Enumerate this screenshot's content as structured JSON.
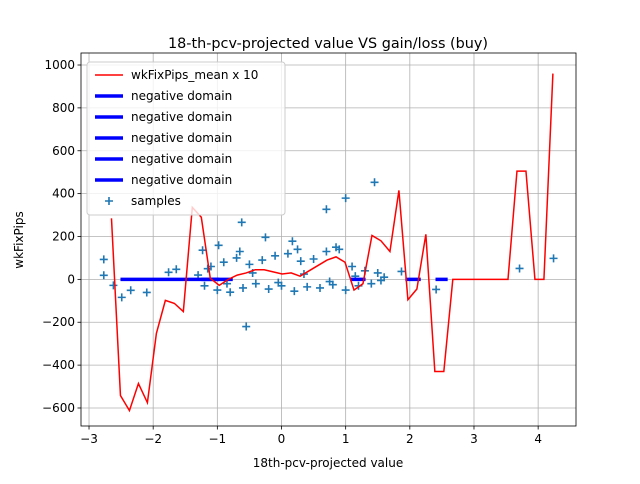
{
  "chart_data": {
    "type": "line_scatter",
    "title": "18-th-pcv-projected value VS gain/loss (buy)",
    "x_label": "18th-pcv-projected value",
    "y_label": "wkFixPips",
    "xlim": [
      -3.125,
      4.59
    ],
    "ylim": [
      -684,
      1056
    ],
    "xticks": [
      {
        "value": -3,
        "label": "−3"
      },
      {
        "value": -2,
        "label": "−2"
      },
      {
        "value": -1,
        "label": "−1"
      },
      0,
      1,
      2,
      3,
      4
    ],
    "yticks": [
      {
        "value": -600,
        "label": "−600"
      },
      {
        "value": -400,
        "label": "−400"
      },
      {
        "value": -200,
        "label": "−200"
      },
      0,
      200,
      400,
      600,
      800,
      1000
    ],
    "grid": true,
    "legend": "upper left",
    "line": {
      "name": "wkFixPips_mean x 10",
      "color": "#ff0000",
      "x": [
        -2.65,
        -2.51,
        -2.37,
        -2.23,
        -2.09,
        -1.95,
        -1.81,
        -1.67,
        -1.53,
        -1.39,
        -1.25,
        -1.11,
        -0.97,
        -0.83,
        -0.69,
        -0.55,
        -0.41,
        -0.27,
        -0.13,
        0.01,
        0.15,
        0.29,
        0.43,
        0.57,
        0.71,
        0.85,
        0.99,
        1.13,
        1.27,
        1.41,
        1.55,
        1.69,
        1.83,
        1.97,
        2.11,
        2.25,
        2.39,
        2.53,
        2.67,
        2.81,
        2.95,
        3.09,
        3.23,
        3.37,
        3.53,
        3.67,
        3.81,
        3.95,
        4.09,
        4.23
      ],
      "values": [
        285,
        -542,
        -612,
        -486,
        -575,
        -252,
        -98,
        -112,
        -150,
        336,
        290,
        5,
        -28,
        0,
        20,
        30,
        45,
        45,
        35,
        25,
        30,
        15,
        40,
        65,
        90,
        105,
        80,
        -50,
        -20,
        205,
        180,
        130,
        415,
        -95,
        -45,
        210,
        -430,
        -430,
        0,
        0,
        0,
        0,
        0,
        0,
        0,
        505,
        505,
        0,
        0,
        960
      ]
    },
    "segments": [
      {
        "name": "negative domain",
        "color": "#0000ff",
        "x": [
          -2.51,
          -0.76
        ],
        "values": [
          0,
          0
        ]
      },
      {
        "name": "negative domain",
        "color": "#0000ff",
        "x": [
          -1.25,
          -0.97
        ],
        "values": [
          0,
          0
        ]
      },
      {
        "name": "negative domain",
        "color": "#0000ff",
        "x": [
          1.07,
          1.31
        ],
        "values": [
          0,
          0
        ]
      },
      {
        "name": "negative domain",
        "color": "#0000ff",
        "x": [
          1.93,
          2.17
        ],
        "values": [
          0,
          0
        ]
      },
      {
        "name": "negative domain",
        "color": "#0000ff",
        "x": [
          2.4,
          2.59
        ],
        "values": [
          0,
          0
        ]
      }
    ],
    "scatter": {
      "name": "samples",
      "color": "#1f77b4",
      "x": [
        -2.77,
        -2.77,
        -2.62,
        -2.49,
        -2.35,
        -2.1,
        -1.76,
        -1.64,
        -1.23,
        -0.98,
        -0.62,
        -0.55,
        -0.25,
        0.17,
        0.7,
        1.0,
        1.45,
        1.87,
        2.41,
        3.71,
        4.24,
        -1.3,
        -1.2,
        -1.1,
        -1.0,
        -0.9,
        -0.8,
        -0.7,
        -0.6,
        -0.5,
        -0.4,
        -0.3,
        -0.2,
        -0.1,
        0.0,
        0.1,
        0.2,
        0.3,
        0.4,
        0.5,
        0.6,
        0.7,
        0.8,
        0.9,
        1.0,
        1.1,
        1.2,
        1.3,
        1.4,
        1.5,
        1.6,
        -1.15,
        -0.85,
        -0.45,
        -0.05,
        0.35,
        0.75,
        1.15,
        1.55,
        -0.65,
        0.25,
        0.85
      ],
      "values": [
        93,
        19,
        -28,
        -84,
        -51,
        -61,
        33,
        47,
        136,
        159,
        266,
        -220,
        196,
        178,
        327,
        379,
        453,
        37,
        -47,
        51,
        98,
        20,
        -30,
        60,
        -50,
        80,
        -60,
        100,
        -40,
        70,
        -20,
        90,
        -45,
        110,
        -30,
        120,
        -55,
        85,
        -35,
        95,
        -40,
        130,
        -25,
        140,
        -50,
        60,
        -30,
        40,
        -20,
        30,
        10,
        50,
        -20,
        30,
        -15,
        25,
        -10,
        15,
        -5,
        130,
        140,
        150
      ]
    }
  }
}
